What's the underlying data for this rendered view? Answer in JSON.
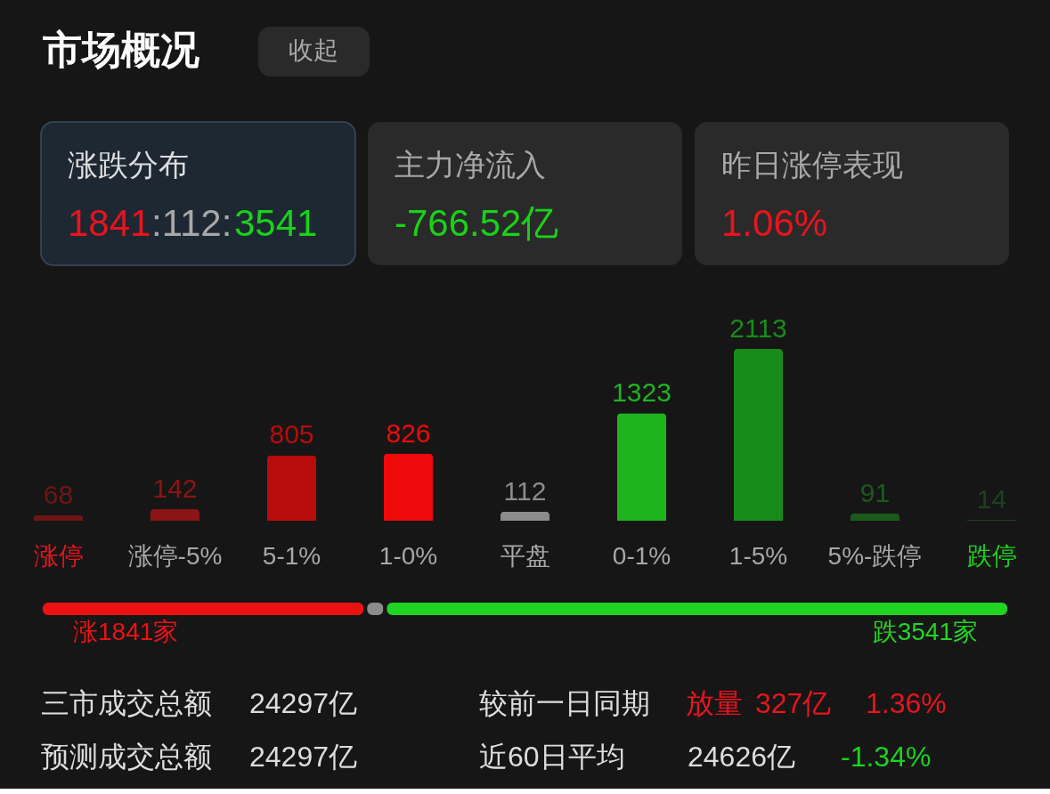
{
  "chart_data": [
    {
      "type": "bar",
      "categories": [
        "涨停",
        "涨停-5%",
        "5-1%",
        "1-0%",
        "平盘",
        "0-1%",
        "1-5%",
        "5%-跌停",
        "跌停"
      ],
      "values": [
        68,
        142,
        805,
        826,
        112,
        1323,
        2113,
        91,
        14
      ],
      "colors": [
        "#6e1616",
        "#8c1414",
        "#b80c0c",
        "#ee0a0a",
        "#8c8c8c",
        "#1eb41e",
        "#188c1a",
        "#1c5a1c",
        "#1e4020"
      ],
      "data_labels": true,
      "annotations": [
        "市场概况",
        "收起",
        "涨跌分布",
        "1841",
        ":112:",
        "3541",
        "主力净流入",
        "-766.52亿",
        "昨日涨停表现",
        "1.06%",
        "三市成交总额",
        "24297亿",
        "较前一日同期",
        "放量",
        "327亿",
        "1.36%",
        "预测成交总额",
        "24297亿",
        "近60日平均",
        "24626亿",
        "-1.34%"
      ]
    },
    {
      "type": "bar",
      "orientation": "horizontal",
      "stacked": true,
      "categories": [
        null
      ],
      "series": [
        {
          "color": "#ee1111",
          "values": [
            1841
          ],
          "value_labels": [
            "涨1841家"
          ]
        },
        {
          "color": "#8c8c8c",
          "values": [
            112
          ],
          "value_labels": [
            null
          ]
        },
        {
          "color": "#22d422",
          "values": [
            3541
          ],
          "value_labels": [
            "跌3541家"
          ]
        }
      ]
    }
  ]
}
